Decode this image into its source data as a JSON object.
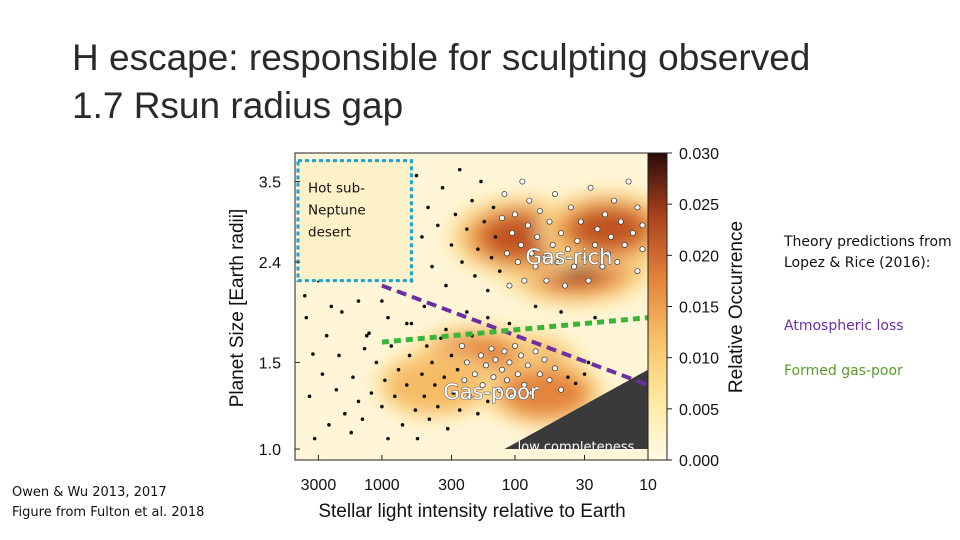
{
  "slide": {
    "title_line1": "H escape: responsible for sculpting observed",
    "title_line2": "1.7 Rsun radius gap"
  },
  "theory": {
    "text": "Theory predictions from Lopez & Rice (2016):",
    "atmospheric_loss": "Atmospheric loss",
    "formed_gas_poor": "Formed gas-poor"
  },
  "credit": {
    "line1": "Owen & Wu 2013, 2017",
    "line2": "Figure from Fulton et al. 2018"
  },
  "colors": {
    "atmospheric_loss": "#6b2fa0",
    "formed_gas_poor": "#3ab53a",
    "desert_box": "#1aa3d6",
    "low_completeness": "#3a3a3a"
  },
  "chart_data": {
    "type": "heatmap",
    "xlabel": "Stellar light intensity relative to Earth",
    "ylabel": "Planet Size [Earth radii]",
    "x_scale": "log-reversed",
    "y_scale": "log",
    "xlim": [
      4500,
      10
    ],
    "ylim": [
      0.95,
      4.0
    ],
    "x_ticks": [
      {
        "v": 3000,
        "label": "3000"
      },
      {
        "v": 1000,
        "label": "1000"
      },
      {
        "v": 300,
        "label": "300"
      },
      {
        "v": 100,
        "label": "100"
      },
      {
        "v": 30,
        "label": "30"
      },
      {
        "v": 10,
        "label": "10"
      }
    ],
    "y_ticks": [
      {
        "v": 3.5,
        "label": "3.5"
      },
      {
        "v": 2.4,
        "label": "2.4"
      },
      {
        "v": 1.5,
        "label": "1.5"
      },
      {
        "v": 1.0,
        "label": "1.0"
      }
    ],
    "colorbar": {
      "label": "Relative Occurrence",
      "range": [
        0.0,
        0.03
      ],
      "ticks": [
        "0.030",
        "0.025",
        "0.020",
        "0.015",
        "0.010",
        "0.005",
        "0.000"
      ]
    },
    "annotations": {
      "gas_rich": "Gas-rich",
      "gas_poor": "Gas-poor",
      "low_completeness": "low completeness",
      "desert": "Hot sub-Neptune desert"
    },
    "lines": {
      "atmospheric_loss": [
        [
          1000,
          2.15
        ],
        [
          10,
          1.35
        ]
      ],
      "formed_gas_poor": [
        [
          1000,
          1.65
        ],
        [
          10,
          1.85
        ]
      ]
    },
    "desert_box": {
      "x": [
        4500,
        600
      ],
      "y": [
        2.2,
        3.95
      ]
    },
    "low_completeness_region": [
      [
        120,
        1.0
      ],
      [
        10,
        1.0
      ],
      [
        10,
        1.45
      ]
    ],
    "density_peaks": [
      {
        "x": 35,
        "y": 2.4,
        "level": 1.0
      },
      {
        "x": 90,
        "y": 2.7,
        "level": 0.8
      },
      {
        "x": 20,
        "y": 2.8,
        "level": 0.7
      },
      {
        "x": 100,
        "y": 1.45,
        "level": 0.75
      },
      {
        "x": 200,
        "y": 1.5,
        "level": 0.65
      },
      {
        "x": 400,
        "y": 1.35,
        "level": 0.45
      },
      {
        "x": 60,
        "y": 1.3,
        "level": 0.5
      }
    ],
    "planets": [
      [
        3200,
        1.05
      ],
      [
        2500,
        1.12
      ],
      [
        3500,
        1.28
      ],
      [
        2800,
        1.42
      ],
      [
        3300,
        1.56
      ],
      [
        2600,
        1.7
      ],
      [
        3700,
        1.85
      ],
      [
        2200,
        1.32
      ],
      [
        1900,
        1.18
      ],
      [
        2100,
        1.55
      ],
      [
        1700,
        1.08
      ],
      [
        1500,
        1.25
      ],
      [
        1650,
        1.4
      ],
      [
        1350,
        1.6
      ],
      [
        1400,
        1.15
      ],
      [
        1200,
        1.3
      ],
      [
        1100,
        1.5
      ],
      [
        1250,
        1.72
      ],
      [
        1000,
        1.22
      ],
      [
        950,
        1.38
      ],
      [
        900,
        1.05
      ],
      [
        850,
        1.62
      ],
      [
        800,
        1.28
      ],
      [
        750,
        1.45
      ],
      [
        700,
        1.12
      ],
      [
        650,
        1.35
      ],
      [
        620,
        1.55
      ],
      [
        600,
        1.8
      ],
      [
        560,
        1.2
      ],
      [
        540,
        1.05
      ],
      [
        500,
        1.42
      ],
      [
        480,
        1.28
      ],
      [
        460,
        1.62
      ],
      [
        440,
        1.15
      ],
      [
        420,
        1.5
      ],
      [
        400,
        1.35
      ],
      [
        380,
        1.22
      ],
      [
        360,
        1.68
      ],
      [
        340,
        1.4
      ],
      [
        320,
        1.1
      ],
      [
        300,
        1.55
      ],
      [
        290,
        1.3
      ],
      [
        270,
        1.45
      ],
      [
        260,
        1.2
      ],
      [
        250,
        1.62
      ],
      [
        240,
        1.38
      ],
      [
        230,
        1.5
      ],
      [
        220,
        1.28
      ],
      [
        210,
        1.7
      ],
      [
        200,
        1.42
      ],
      [
        190,
        1.18
      ],
      [
        180,
        1.55
      ],
      [
        175,
        1.35
      ],
      [
        165,
        1.48
      ],
      [
        160,
        1.25
      ],
      [
        150,
        1.6
      ],
      [
        145,
        1.4
      ],
      [
        140,
        1.52
      ],
      [
        130,
        1.32
      ],
      [
        125,
        1.45
      ],
      [
        120,
        1.58
      ],
      [
        115,
        1.38
      ],
      [
        110,
        1.5
      ],
      [
        105,
        1.28
      ],
      [
        100,
        1.62
      ],
      [
        95,
        1.42
      ],
      [
        90,
        1.55
      ],
      [
        85,
        1.35
      ],
      [
        80,
        1.48
      ],
      [
        75,
        1.3
      ],
      [
        70,
        1.58
      ],
      [
        65,
        1.42
      ],
      [
        60,
        1.52
      ],
      [
        55,
        1.38
      ],
      [
        50,
        1.46
      ],
      [
        45,
        1.32
      ],
      [
        40,
        1.4
      ],
      [
        35,
        1.36
      ],
      [
        30,
        1.42
      ],
      [
        28,
        1.5
      ],
      [
        1500,
        2.0
      ],
      [
        1200,
        2.3
      ],
      [
        1800,
        2.6
      ],
      [
        1000,
        2.0
      ],
      [
        900,
        2.5
      ],
      [
        800,
        2.9
      ],
      [
        700,
        3.3
      ],
      [
        600,
        2.2
      ],
      [
        550,
        3.6
      ],
      [
        500,
        2.7
      ],
      [
        450,
        3.1
      ],
      [
        420,
        2.35
      ],
      [
        380,
        2.85
      ],
      [
        350,
        3.4
      ],
      [
        330,
        2.15
      ],
      [
        300,
        2.6
      ],
      [
        280,
        3.0
      ],
      [
        260,
        3.7
      ],
      [
        250,
        2.4
      ],
      [
        230,
        2.8
      ],
      [
        210,
        3.2
      ],
      [
        200,
        2.25
      ],
      [
        190,
        2.55
      ],
      [
        180,
        3.5
      ],
      [
        170,
        2.9
      ],
      [
        160,
        2.1
      ],
      [
        150,
        2.45
      ],
      [
        145,
        3.1
      ],
      [
        140,
        2.7
      ],
      [
        130,
        2.3
      ],
      [
        125,
        2.95
      ],
      [
        120,
        3.3
      ],
      [
        115,
        2.5
      ],
      [
        110,
        2.15
      ],
      [
        105,
        2.75
      ],
      [
        100,
        3.0
      ],
      [
        95,
        2.4
      ],
      [
        90,
        2.6
      ],
      [
        88,
        3.5
      ],
      [
        85,
        2.2
      ],
      [
        80,
        2.85
      ],
      [
        78,
        3.2
      ],
      [
        75,
        2.5
      ],
      [
        70,
        2.35
      ],
      [
        68,
        2.7
      ],
      [
        65,
        3.05
      ],
      [
        60,
        2.45
      ],
      [
        58,
        2.2
      ],
      [
        55,
        2.9
      ],
      [
        52,
        2.6
      ],
      [
        50,
        3.3
      ],
      [
        48,
        2.4
      ],
      [
        45,
        2.75
      ],
      [
        42,
        2.15
      ],
      [
        40,
        2.55
      ],
      [
        38,
        3.1
      ],
      [
        36,
        2.35
      ],
      [
        34,
        2.65
      ],
      [
        32,
        2.9
      ],
      [
        30,
        2.45
      ],
      [
        28,
        2.2
      ],
      [
        27,
        3.4
      ],
      [
        25,
        2.6
      ],
      [
        24,
        2.8
      ],
      [
        22,
        2.35
      ],
      [
        21,
        3.0
      ],
      [
        20,
        2.5
      ],
      [
        19,
        2.7
      ],
      [
        18,
        3.2
      ],
      [
        17,
        2.4
      ],
      [
        16,
        2.9
      ],
      [
        15,
        2.6
      ],
      [
        14,
        3.5
      ],
      [
        13,
        2.75
      ],
      [
        12,
        2.3
      ],
      [
        12,
        3.1
      ],
      [
        11,
        2.55
      ],
      [
        11,
        2.85
      ],
      [
        25,
        1.85
      ],
      [
        45,
        1.9
      ],
      [
        70,
        1.95
      ],
      [
        110,
        1.8
      ],
      [
        160,
        1.85
      ],
      [
        230,
        1.9
      ],
      [
        330,
        1.75
      ],
      [
        480,
        1.95
      ],
      [
        650,
        1.8
      ],
      [
        900,
        1.85
      ],
      [
        1300,
        1.7
      ],
      [
        2000,
        1.9
      ],
      [
        3800,
        2.05
      ],
      [
        3000,
        2.2
      ],
      [
        2400,
        1.95
      ]
    ]
  }
}
